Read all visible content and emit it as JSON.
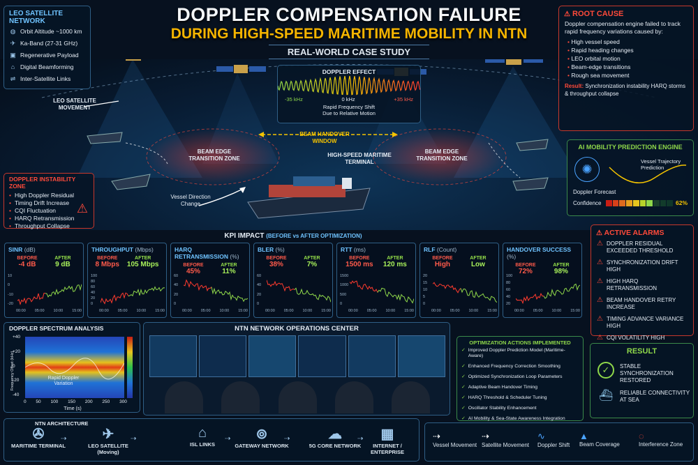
{
  "header": {
    "title_line1": "DOPPLER COMPENSATION FAILURE",
    "title_line2": "DURING HIGH-SPEED MARITIME MOBILITY IN NTN",
    "subtitle": "REAL-WORLD CASE STUDY"
  },
  "leo_network": {
    "title": "LEO SATELLITE NETWORK",
    "items": [
      {
        "icon": "globe-icon",
        "label": "Orbit Altitude ~1000 km"
      },
      {
        "icon": "satellite-icon",
        "label": "Ka-Band (27-31 GHz)"
      },
      {
        "icon": "chip-icon",
        "label": "Regenerative Payload"
      },
      {
        "icon": "antenna-icon",
        "label": "Digital Beamforming"
      },
      {
        "icon": "link-icon",
        "label": "Inter-Satellite Links"
      }
    ]
  },
  "scene": {
    "leo_movement": "LEO SATELLITE MOVEMENT",
    "beam_edge_left": "BEAM EDGE TRANSITION ZONE",
    "beam_edge_right": "BEAM EDGE TRANSITION ZONE",
    "handover_window": "BEAM HANDOVER WINDOW",
    "terminal": "HIGH-SPEED MARITIME TERMINAL",
    "vessel_direction": "Vessel Direction Change"
  },
  "doppler_effect": {
    "title": "DOPPLER EFFECT",
    "left": "-35 kHz",
    "center": "0 kHz",
    "right": "+35 kHz",
    "caption_line1": "Rapid Frequency Shift",
    "caption_line2": "Due to Relative Motion"
  },
  "root_cause": {
    "title": "ROOT CAUSE",
    "intro": "Doppler compensation engine failed to track rapid frequency variations caused by:",
    "items": [
      "High vessel speed",
      "Rapid heading changes",
      "LEO orbital motion",
      "Beam-edge transitions",
      "Rough sea movement"
    ],
    "result_label": "Result:",
    "result_text": "Synchronization instability HARQ storms & throughput collapse"
  },
  "ai_engine": {
    "title": "AI MOBILITY PREDICTION ENGINE",
    "trajectory": "Vessel Trajectory Prediction",
    "forecast": "Doppler Forecast",
    "confidence_label": "Confidence",
    "confidence_value": "62%",
    "confidence_fraction": 0.62
  },
  "instability_zone": {
    "title": "DOPPLER INSTABILITY ZONE",
    "items": [
      "High Doppler Residual",
      "Timing Drift Increase",
      "CQI Fluctuation",
      "HARQ Retransmission",
      "Throughput Collapse"
    ]
  },
  "kpi": {
    "title": "KPI IMPACT",
    "title_suffix": "(BEFORE vs AFTER OPTIMIZATION)",
    "before_label": "BEFORE",
    "after_label": "AFTER",
    "cards": [
      {
        "name": "SINR",
        "unit": "(dB)",
        "before": "-4 dB",
        "after": "9 dB",
        "yticks": [
          "10",
          "0",
          "-10",
          "-20"
        ],
        "trend": "up"
      },
      {
        "name": "THROUGHPUT",
        "unit": "(Mbps)",
        "before": "8 Mbps",
        "after": "105 Mbps",
        "yticks": [
          "100",
          "80",
          "60",
          "40",
          "20",
          "0"
        ],
        "trend": "up"
      },
      {
        "name": "HARQ RETRANSMISSION",
        "unit": "(%)",
        "before": "45%",
        "after": "11%",
        "yticks": [
          "60",
          "40",
          "20",
          "0"
        ],
        "trend": "down"
      },
      {
        "name": "BLER",
        "unit": "(%)",
        "before": "38%",
        "after": "7%",
        "yticks": [
          "60",
          "40",
          "20",
          "0"
        ],
        "trend": "down"
      },
      {
        "name": "RTT",
        "unit": "(ms)",
        "before": "1500 ms",
        "after": "120 ms",
        "yticks": [
          "1500",
          "1000",
          "500",
          "0"
        ],
        "trend": "down"
      },
      {
        "name": "RLF",
        "unit": "(Count)",
        "before": "High",
        "after": "Low",
        "yticks": [
          "20",
          "15",
          "10",
          "5",
          "0"
        ],
        "trend": "down"
      },
      {
        "name": "HANDOVER SUCCESS",
        "unit": "(%)",
        "before": "72%",
        "after": "98%",
        "yticks": [
          "100",
          "80",
          "60",
          "40",
          "20"
        ],
        "trend": "up"
      }
    ],
    "xticks": [
      "00:00",
      "05:00",
      "10:00",
      "15:00"
    ]
  },
  "alarms": {
    "title": "ACTIVE ALARMS",
    "items": [
      "DOPPLER RESIDUAL EXCEEDED THRESHOLD",
      "SYNCHRONIZATION DRIFT HIGH",
      "HIGH HARQ RETRANSMISSION",
      "BEAM HANDOVER RETRY INCREASE",
      "TIMING ADVANCE VARIANCE HIGH",
      "CQI VOLATILITY HIGH"
    ]
  },
  "spectrum": {
    "title": "DOPPLER SPECTRUM ANALYSIS",
    "ylabel": "Frequency Offset (kHz)",
    "xlabel": "Time (s)",
    "yticks": [
      "+40",
      "+20",
      "0",
      "-20",
      "-40"
    ],
    "xticks": [
      "0",
      "50",
      "100",
      "150",
      "200",
      "250",
      "300"
    ],
    "annotation": "Rapid Doppler Variation"
  },
  "noc": {
    "title": "NTN NETWORK OPERATIONS CENTER"
  },
  "optimization": {
    "title": "OPTIMIZATION ACTIONS IMPLEMENTED",
    "items": [
      "Improved Doppler Prediction Model (Maritime-Aware)",
      "Enhanced Frequency Correction Smoothing",
      "Optimized Synchronization Loop Parameters",
      "Adaptive Beam Handover Timing",
      "HARQ Threshold & Scheduler Tuning",
      "Oscillator Stability Enhancement",
      "AI Mobility & Sea-State Awareness Integration"
    ]
  },
  "result": {
    "title": "RESULT",
    "item1": "STABLE SYNCHRONIZATION RESTORED",
    "item2": "RELIABLE CONNECTIVITY AT SEA"
  },
  "architecture": {
    "title": "NTN ARCHITECTURE",
    "nodes": [
      "MARITIME TERMINAL",
      "LEO SATELLITE (Moving)",
      "ISL LINKS",
      "GATEWAY NETWORK",
      "5G CORE NETWORK",
      "INTERNET / ENTERPRISE"
    ]
  },
  "legend": {
    "items": [
      "Vessel Movement",
      "Satellite Movement",
      "Doppler Shift",
      "Beam Coverage",
      "Interference Zone"
    ]
  },
  "colors": {
    "accent_blue": "#6fc3ff",
    "title_yellow": "#f5b400",
    "alarm_red": "#ff4a3a",
    "good_green": "#8fd84a"
  }
}
